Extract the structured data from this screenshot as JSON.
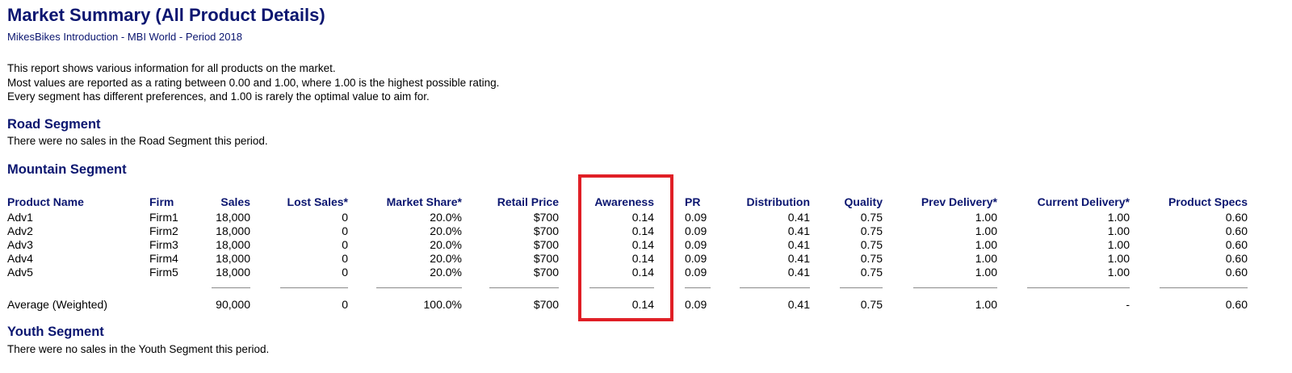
{
  "header": {
    "title": "Market Summary (All Product Details)",
    "subtitle": "MikesBikes Introduction - MBI World - Period 2018"
  },
  "intro": [
    "This report shows various information for all products on the market.",
    "Most values are reported as a rating between 0.00 and 1.00, where 1.00 is the highest possible rating.",
    "Every segment has different preferences, and 1.00 is rarely the optimal value to aim for."
  ],
  "segments": {
    "road": {
      "title": "Road Segment",
      "note": "There were no sales in the Road Segment this period."
    },
    "mountain": {
      "title": "Mountain Segment",
      "columns": [
        "Product Name",
        "Firm",
        "Sales",
        "Lost Sales*",
        "Market Share*",
        "Retail Price",
        "Awareness",
        "PR",
        "Distribution",
        "Quality",
        "Prev Delivery*",
        "Current Delivery*",
        "Product Specs"
      ],
      "rows": [
        [
          "Adv1",
          "Firm1",
          "18,000",
          "0",
          "20.0%",
          "$700",
          "0.14",
          "0.09",
          "0.41",
          "0.75",
          "1.00",
          "1.00",
          "0.60"
        ],
        [
          "Adv2",
          "Firm2",
          "18,000",
          "0",
          "20.0%",
          "$700",
          "0.14",
          "0.09",
          "0.41",
          "0.75",
          "1.00",
          "1.00",
          "0.60"
        ],
        [
          "Adv3",
          "Firm3",
          "18,000",
          "0",
          "20.0%",
          "$700",
          "0.14",
          "0.09",
          "0.41",
          "0.75",
          "1.00",
          "1.00",
          "0.60"
        ],
        [
          "Adv4",
          "Firm4",
          "18,000",
          "0",
          "20.0%",
          "$700",
          "0.14",
          "0.09",
          "0.41",
          "0.75",
          "1.00",
          "1.00",
          "0.60"
        ],
        [
          "Adv5",
          "Firm5",
          "18,000",
          "0",
          "20.0%",
          "$700",
          "0.14",
          "0.09",
          "0.41",
          "0.75",
          "1.00",
          "1.00",
          "0.60"
        ]
      ],
      "average": [
        "Average (Weighted)",
        "",
        "90,000",
        "0",
        "100.0%",
        "$700",
        "0.14",
        "0.09",
        "0.41",
        "0.75",
        "1.00",
        "-",
        "0.60"
      ]
    },
    "youth": {
      "title": "Youth Segment",
      "note": "There were no sales in the Youth Segment this period."
    }
  },
  "colors": {
    "heading": "#0b1670",
    "highlight": "#e01f26"
  }
}
